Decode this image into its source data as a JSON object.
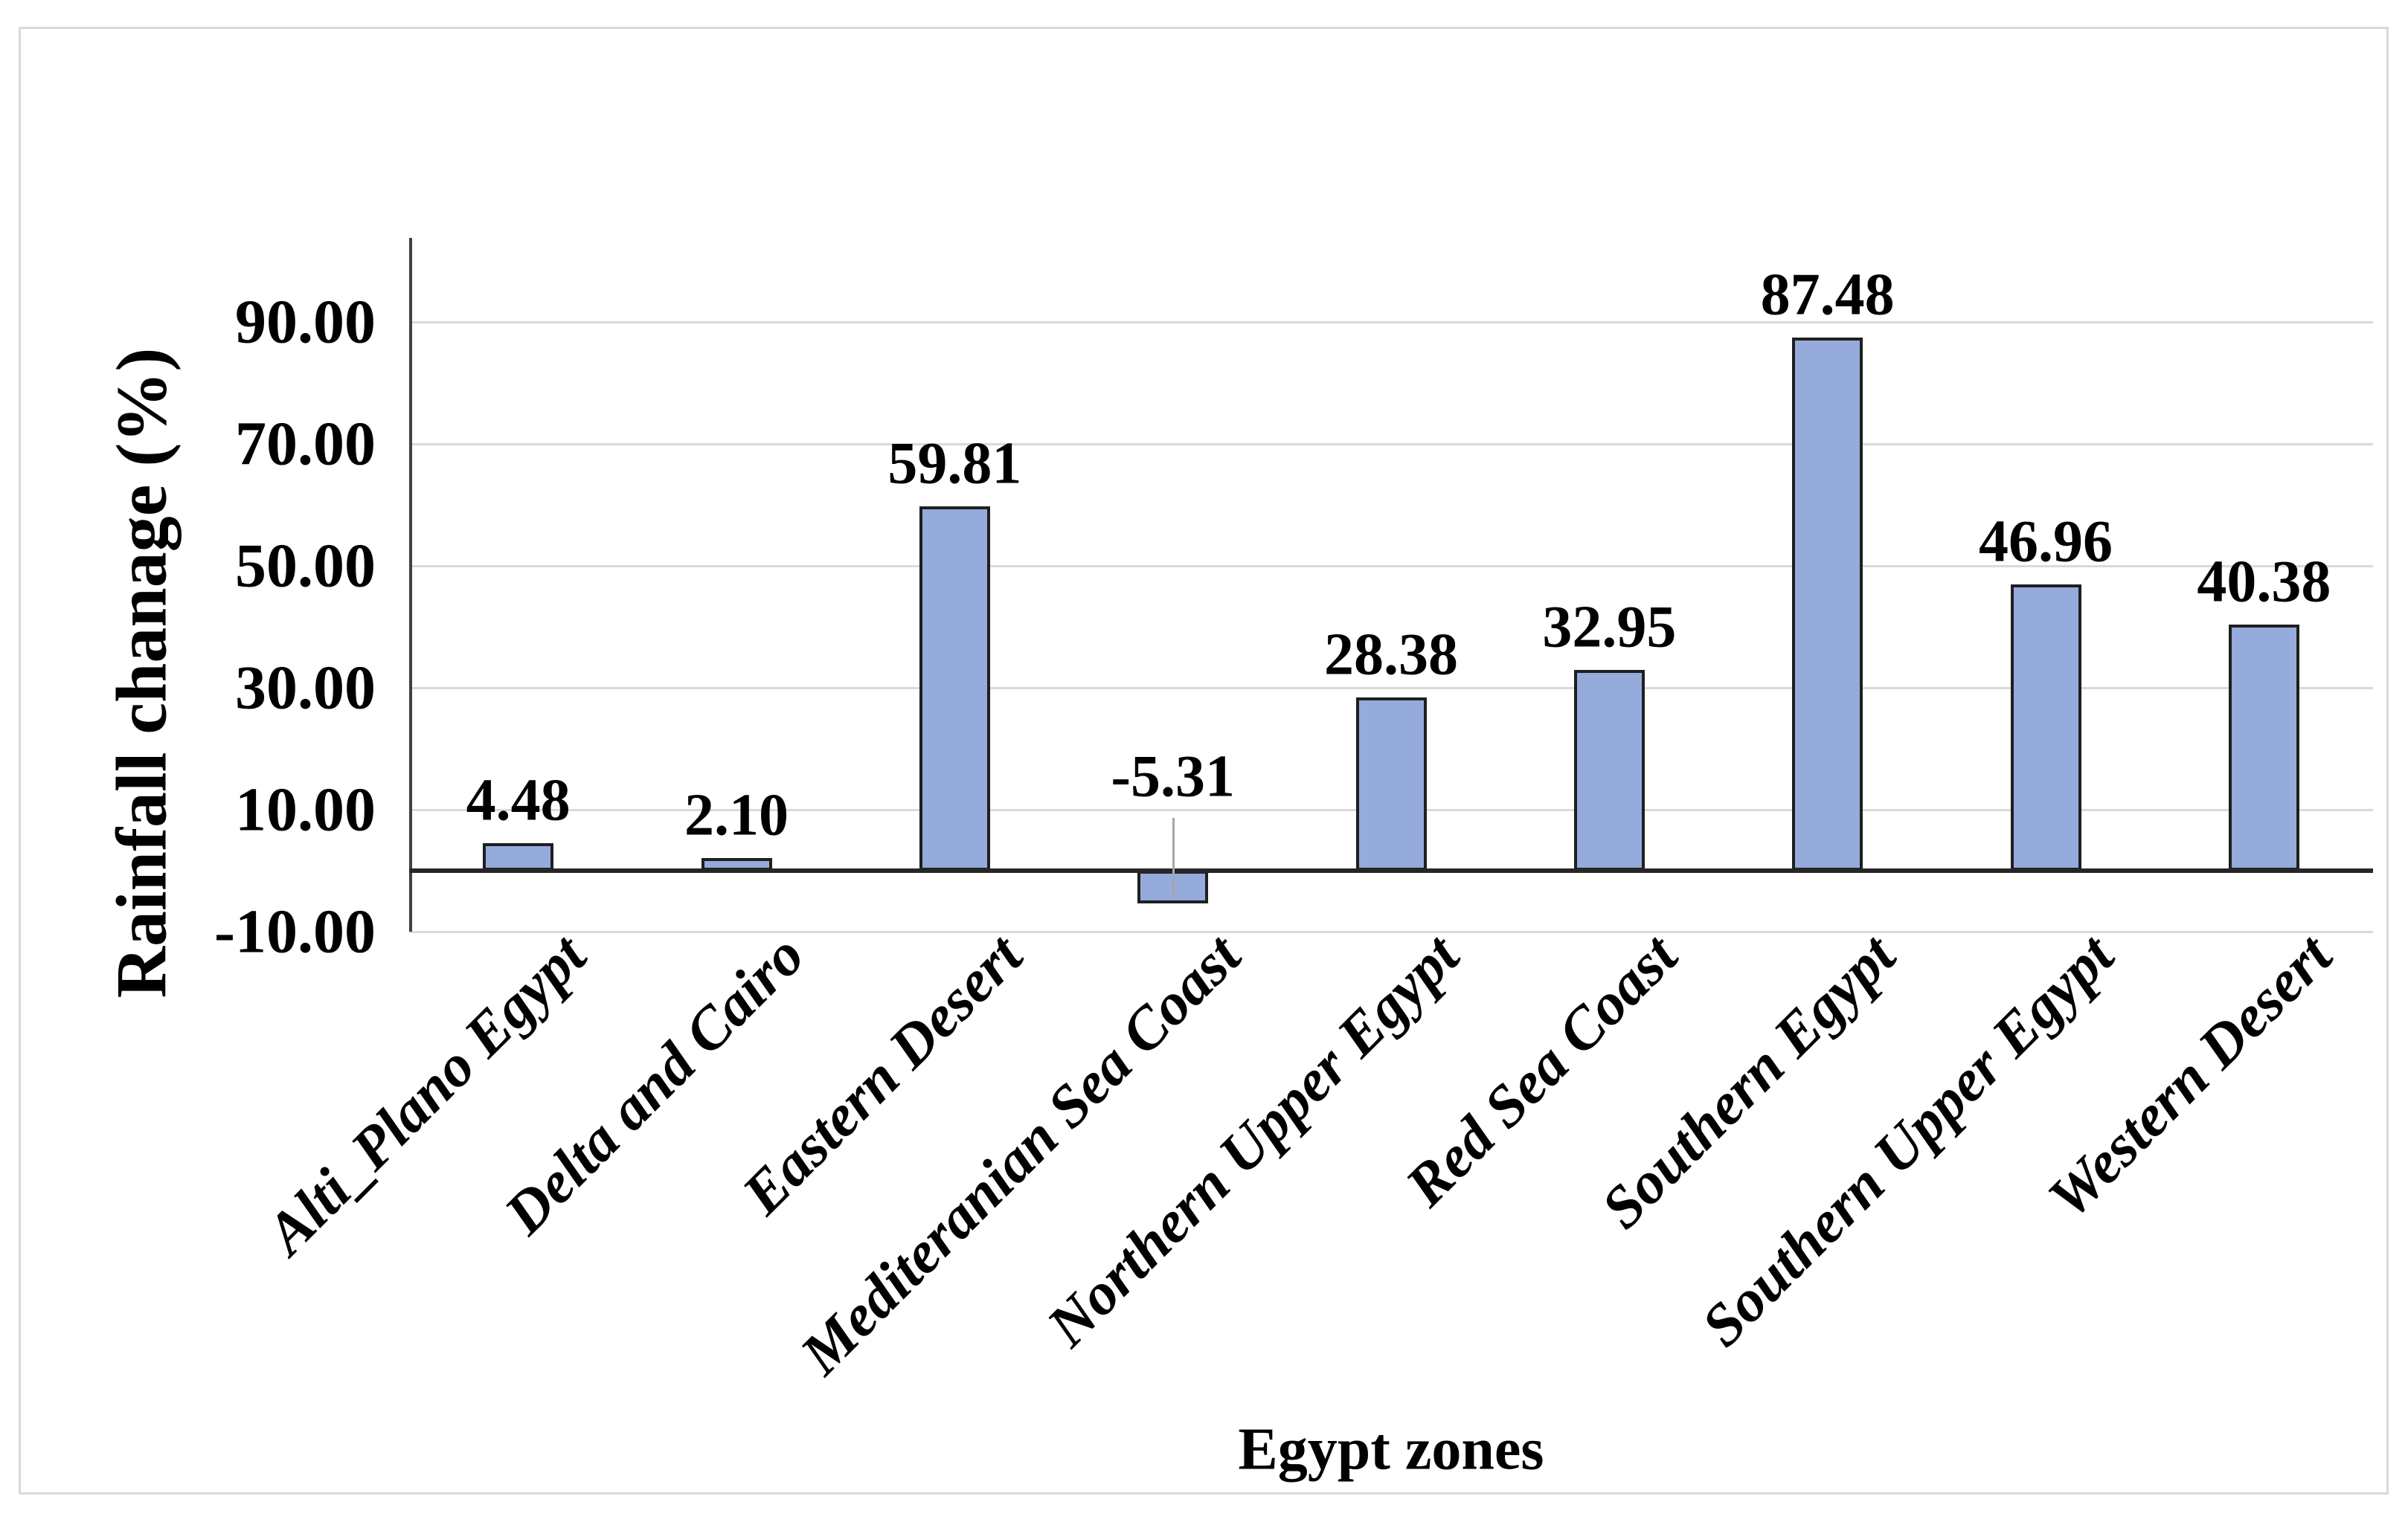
{
  "figure": {
    "background": "#ffffff",
    "border_color": "#d9d9d9"
  },
  "chart_data": {
    "type": "bar",
    "title": "",
    "xlabel": "Egypt zones",
    "ylabel": "Rainfall chanage (%)",
    "categories": [
      "Alti_Plano Egypt",
      "Delta and Cairo",
      "Eastern Desert",
      "Mediteranian Sea Coast",
      "Northern Upper Egypt",
      "Red Sea Coast",
      "Southern Egypt",
      "Southern Upper Egypt",
      "Western Desert"
    ],
    "values": [
      4.48,
      2.1,
      59.81,
      -5.31,
      28.38,
      32.95,
      87.48,
      46.96,
      40.38
    ],
    "data_labels": [
      "4.48",
      "2.10",
      "59.81",
      "-5.31",
      "28.38",
      "32.95",
      "87.48",
      "46.96",
      "40.38"
    ],
    "y_ticks": [
      {
        "label": "90.00",
        "value": 90
      },
      {
        "label": "70.00",
        "value": 70
      },
      {
        "label": "50.00",
        "value": 50
      },
      {
        "label": "30.00",
        "value": 30
      },
      {
        "label": "10.00",
        "value": 10
      },
      {
        "label": "-10.00",
        "value": -10
      }
    ],
    "ylim": [
      -10,
      103.7
    ],
    "grid": true,
    "legend": false,
    "bar_fill": "#94ABDC",
    "bar_border": "#1f1f1f",
    "gridline_color": "#d9d9d9",
    "zero_axis_color": "#262626",
    "y_axis_line_color": "#404040",
    "leader_line_color": "#a6a6a6"
  }
}
